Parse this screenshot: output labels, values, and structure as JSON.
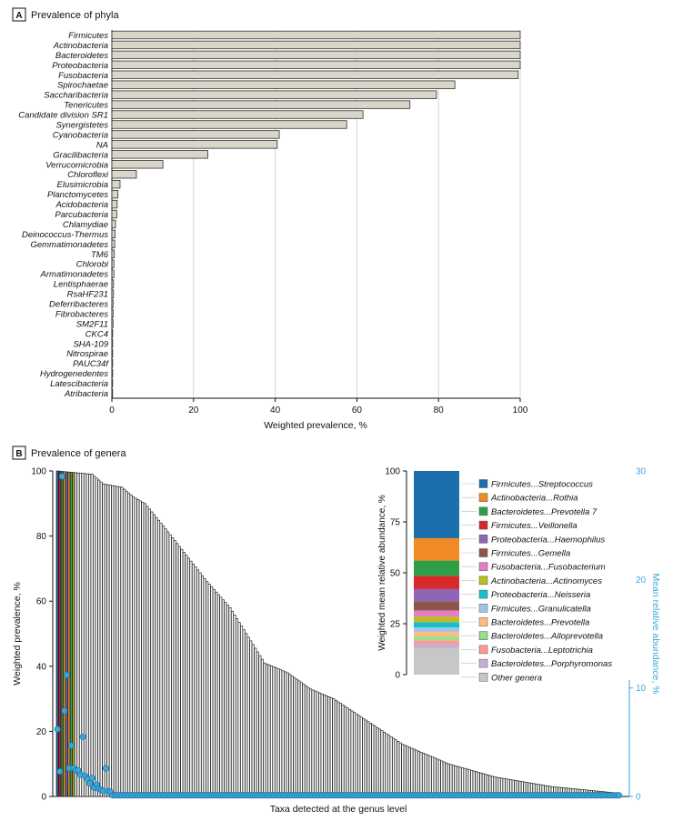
{
  "colors": {
    "bar_fill": "#d9d5c8",
    "bar_stroke": "#333333",
    "grid": "#d7d7d7",
    "abundance": "#39a9dc",
    "panel_label_bg": "#ffffff"
  },
  "panel_a": {
    "letter": "A",
    "title": "Prevalence of phyla",
    "chart_data": {
      "type": "bar",
      "orientation": "horizontal",
      "xlabel": "Weighted prevalence, %",
      "xlim": [
        0,
        100
      ],
      "xticks": [
        0,
        20,
        40,
        60,
        80,
        100
      ],
      "grid": true,
      "categories": [
        "Firmicutes",
        "Actinobacteria",
        "Bacteroidetes",
        "Proteobacteria",
        "Fusobacteria",
        "Spirochaetae",
        "Saccharibacteria",
        "Tenericutes",
        "Candidate division SR1",
        "Synergistetes",
        "Cyanobacteria",
        "NA",
        "Gracilibacteria",
        "Verrucomicrobia",
        "Chloroflexi",
        "Elusimicrobia",
        "Planctomycetes",
        "Acidobacteria",
        "Parcubacteria",
        "Chlamydiae",
        "Deinococcus-Thermus",
        "Gemmatimonadetes",
        "TM6",
        "Chlorobi",
        "Armatimonadetes",
        "Lentisphaerae",
        "RsaHF231",
        "Deferribacteres",
        "Fibrobacteres",
        "SM2F11",
        "CKC4",
        "SHA-109",
        "Nitrospirae",
        "PAUC34f",
        "Hydrogenedentes",
        "Latescibacteria",
        "Atribacteria"
      ],
      "values": [
        100,
        100,
        100,
        100,
        99.5,
        84,
        79.5,
        73,
        61.5,
        57.5,
        41,
        40.5,
        23.5,
        12.5,
        6,
        2,
        1.5,
        1.3,
        1.2,
        0.9,
        0.8,
        0.7,
        0.6,
        0.5,
        0.5,
        0.4,
        0.4,
        0.3,
        0.3,
        0.3,
        0.2,
        0.2,
        0.2,
        0.2,
        0.2,
        0.1,
        0.1
      ]
    }
  },
  "panel_b": {
    "letter": "B",
    "title": "Prevalence of genera",
    "chart_data": {
      "type": "bar",
      "xlabel": "Taxa detected at the genus level",
      "ylabel": "Weighted prevalence, %",
      "ylim": [
        0,
        100
      ],
      "yticks": [
        0,
        20,
        40,
        60,
        80,
        100
      ],
      "y2label": "Mean relative abundance, %",
      "y2lim": [
        0,
        30
      ],
      "y2ticks": [
        0,
        10,
        20,
        30
      ],
      "n_taxa": 245,
      "prevalence_anchors": [
        [
          0,
          100
        ],
        [
          15,
          99
        ],
        [
          20,
          96
        ],
        [
          28,
          95
        ],
        [
          33,
          92
        ],
        [
          38,
          90
        ],
        [
          45,
          84
        ],
        [
          55,
          75
        ],
        [
          65,
          66
        ],
        [
          75,
          58
        ],
        [
          90,
          41
        ],
        [
          100,
          38
        ],
        [
          110,
          33
        ],
        [
          120,
          30
        ],
        [
          135,
          23
        ],
        [
          150,
          16
        ],
        [
          170,
          10
        ],
        [
          190,
          6
        ],
        [
          215,
          3
        ],
        [
          244,
          1
        ]
      ],
      "highlight_colors": [
        "#1f5f9e",
        "#c21c2c",
        "#2e8b45",
        "#c9a227",
        "#8c5fb5",
        "#d98a3a",
        "#3fa34d",
        "#b5a02a"
      ],
      "abundance_series": [
        {
          "index": 0,
          "value": 6.2
        },
        {
          "index": 1,
          "value": 2.3
        },
        {
          "index": 2,
          "value": 29.5
        },
        {
          "index": 3,
          "value": 7.9
        },
        {
          "index": 4,
          "value": 11.2
        },
        {
          "index": 5,
          "value": 2.6
        },
        {
          "index": 6,
          "value": 4.7
        },
        {
          "index": 7,
          "value": 2.6
        },
        {
          "index": 8,
          "value": 2.4
        },
        {
          "index": 9,
          "value": 2.4
        },
        {
          "index": 10,
          "value": 2.0
        },
        {
          "index": 11,
          "value": 5.5
        },
        {
          "index": 12,
          "value": 1.9
        },
        {
          "index": 13,
          "value": 1.6
        },
        {
          "index": 14,
          "value": 1.2
        },
        {
          "index": 15,
          "value": 1.7
        },
        {
          "index": 16,
          "value": 0.8
        },
        {
          "index": 17,
          "value": 1.1
        },
        {
          "index": 18,
          "value": 0.7
        },
        {
          "index": 19,
          "value": 0.6
        },
        {
          "index": 20,
          "value": 0.5
        },
        {
          "index": 21,
          "value": 2.6
        },
        {
          "index": 22,
          "value": 0.5
        },
        {
          "index": 23,
          "value": 0.4
        }
      ],
      "abundance_tail_value": 0.1
    },
    "inset": {
      "chart_data": {
        "type": "bar",
        "stacked": true,
        "ylabel": "Weighted mean relative abundance, %",
        "ylim": [
          0,
          100
        ],
        "yticks": [
          0,
          25,
          50,
          75,
          100
        ],
        "segments": [
          {
            "phylum": "Firmicutes",
            "genus": "Streptococcus",
            "value": 33.0,
            "color": "#1b6fad"
          },
          {
            "phylum": "Actinobacteria",
            "genus": "Rothia",
            "value": 11.0,
            "color": "#f08a24"
          },
          {
            "phylum": "Bacteroidetes",
            "genus": "Prevotella 7",
            "value": 7.5,
            "color": "#2e9e47"
          },
          {
            "phylum": "Firmicutes",
            "genus": "Veillonella",
            "value": 6.5,
            "color": "#d62a2a"
          },
          {
            "phylum": "Proteobacteria",
            "genus": "Haemophilus",
            "value": 6.0,
            "color": "#8f65b8"
          },
          {
            "phylum": "Firmicutes",
            "genus": "Gemella",
            "value": 4.5,
            "color": "#8c564b"
          },
          {
            "phylum": "Fusobacteria",
            "genus": "Fusobacterium",
            "value": 3.0,
            "color": "#e67cc1"
          },
          {
            "phylum": "Actinobacteria",
            "genus": "Actinomyces",
            "value": 2.8,
            "color": "#bcbd22"
          },
          {
            "phylum": "Proteobacteria",
            "genus": "Neisseria",
            "value": 2.5,
            "color": "#17becf"
          },
          {
            "phylum": "Firmicutes",
            "genus": "Granulicatella",
            "value": 2.3,
            "color": "#9ec5e8"
          },
          {
            "phylum": "Bacteroidetes",
            "genus": "Prevotella",
            "value": 2.2,
            "color": "#ffbb78"
          },
          {
            "phylum": "Bacteroidetes",
            "genus": "Alloprevotella",
            "value": 2.0,
            "color": "#98df8a"
          },
          {
            "phylum": "Fusobacteria",
            "genus": "Leptotrichia",
            "value": 2.0,
            "color": "#ff9896"
          },
          {
            "phylum": "Bacteroidetes",
            "genus": "Porphyromonas",
            "value": 1.7,
            "color": "#c5b0d5"
          },
          {
            "phylum": "",
            "genus": "Other genera",
            "value": 13.0,
            "color": "#c7c7c7"
          }
        ]
      }
    }
  }
}
